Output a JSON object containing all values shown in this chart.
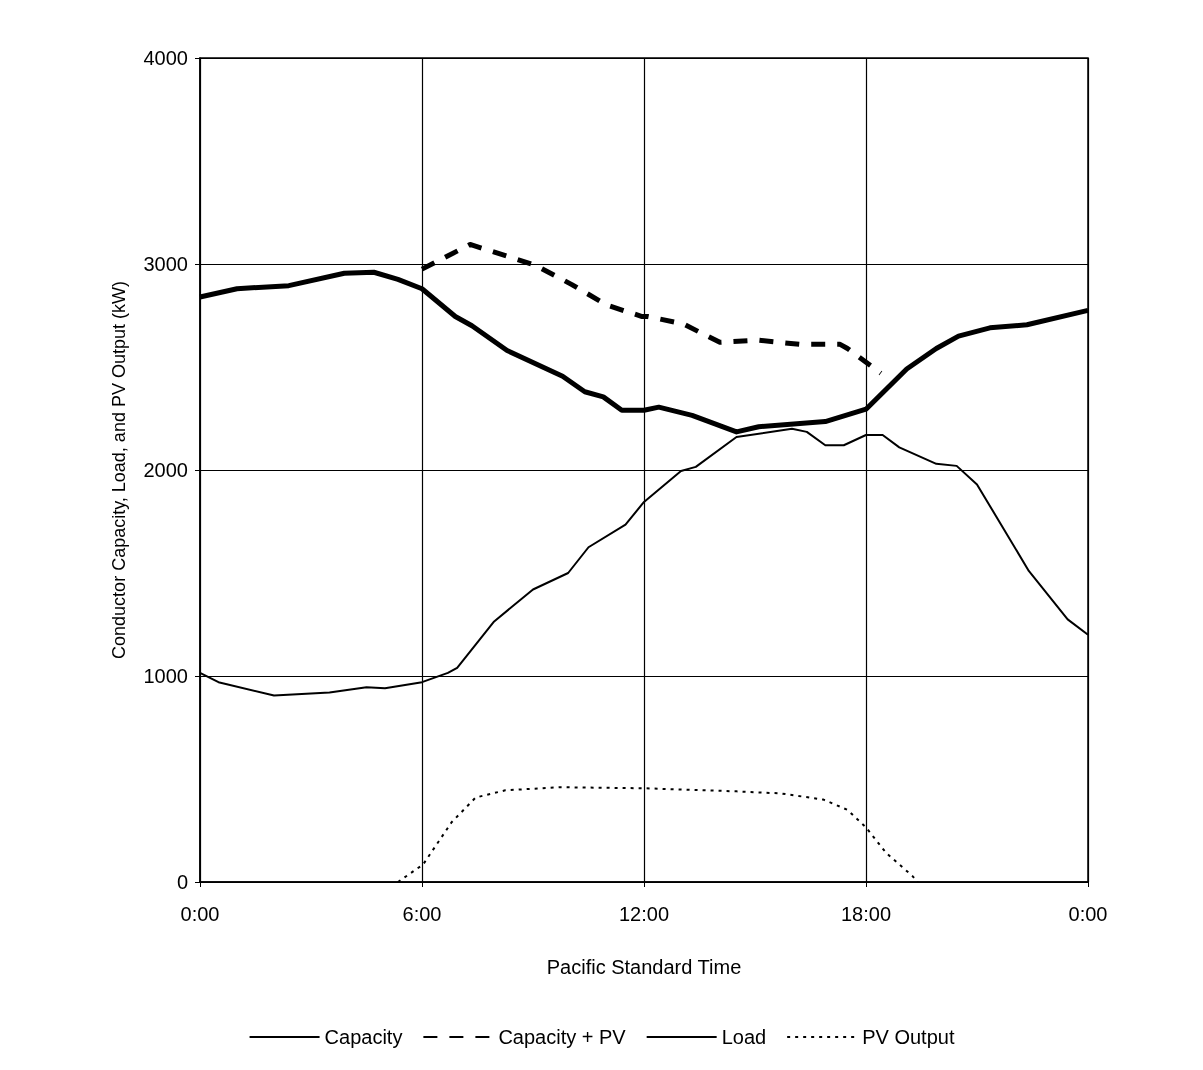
{
  "chart_data": {
    "type": "line",
    "xlabel": "Pacific Standard Time",
    "ylabel": "Conductor Capacity, Load, and PV Output (kW)",
    "xlim": [
      0,
      24
    ],
    "xticks": [
      {
        "value": 0,
        "label": "0:00"
      },
      {
        "value": 6,
        "label": "6:00"
      },
      {
        "value": 12,
        "label": "12:00"
      },
      {
        "value": 18,
        "label": "18:00"
      },
      {
        "value": 24,
        "label": "0:00"
      }
    ],
    "ylim": [
      0,
      4000
    ],
    "yticks": [
      0,
      1000,
      2000,
      3000,
      4000
    ],
    "grid": true,
    "legend": "bottom",
    "marker": "none",
    "series": [
      {
        "name": "Capacity",
        "color": "#000000",
        "line_style": "solid",
        "x": [
          0,
          1,
          2.4,
          3.9,
          4.7,
          5.35,
          6,
          6.9,
          7.35,
          8.3,
          9.8,
          10.4,
          10.9,
          11.4,
          12,
          12.4,
          13.3,
          14.5,
          15.1,
          16.9,
          18,
          19.1,
          19.9,
          20.5,
          21.35,
          22.35,
          24
        ],
        "values": [
          2840,
          2880,
          2895,
          2955,
          2960,
          2925,
          2880,
          2745,
          2700,
          2580,
          2455,
          2380,
          2355,
          2290,
          2290,
          2305,
          2265,
          2185,
          2210,
          2235,
          2295,
          2490,
          2590,
          2650,
          2690,
          2705,
          2775
        ]
      },
      {
        "name": "Capacity + PV",
        "color": "#000000",
        "line_style": "dashed",
        "x": [
          6,
          7.3,
          9.05,
          10.05,
          11,
          11.95,
          12.1,
          13.05,
          14.05,
          15.1,
          16.2,
          17.3,
          17.5,
          18.4
        ],
        "values": [
          2975,
          3095,
          2995,
          2900,
          2800,
          2745,
          2745,
          2710,
          2620,
          2630,
          2610,
          2610,
          2590,
          2470
        ]
      },
      {
        "name": "Load",
        "color": "#000000",
        "line_style": "solid",
        "x": [
          0,
          0.5,
          2,
          3.5,
          4.5,
          5,
          6,
          6.7,
          6.95,
          7.95,
          9,
          9.95,
          10.5,
          11.5,
          12,
          13,
          13.4,
          14.5,
          16,
          16.4,
          16.9,
          17.4,
          18,
          18.45,
          18.9,
          19.9,
          20.45,
          21,
          22.4,
          23.45,
          24
        ],
        "values": [
          1015,
          970,
          905,
          920,
          945,
          940,
          970,
          1015,
          1040,
          1265,
          1420,
          1500,
          1625,
          1735,
          1845,
          1995,
          2015,
          2160,
          2200,
          2185,
          2120,
          2120,
          2170,
          2170,
          2110,
          2030,
          2020,
          1930,
          1510,
          1275,
          1200
        ]
      },
      {
        "name": "PV Output",
        "color": "#000000",
        "line_style": "dotted",
        "x": [
          5.35,
          6.03,
          6.8,
          7.45,
          8.25,
          9.7,
          12,
          14.5,
          15.7,
          16.85,
          17.5,
          18,
          18.55,
          19.25,
          19.4
        ],
        "values": [
          0,
          85,
          290,
          410,
          445,
          460,
          455,
          440,
          430,
          400,
          350,
          265,
          140,
          30,
          0
        ]
      }
    ]
  }
}
